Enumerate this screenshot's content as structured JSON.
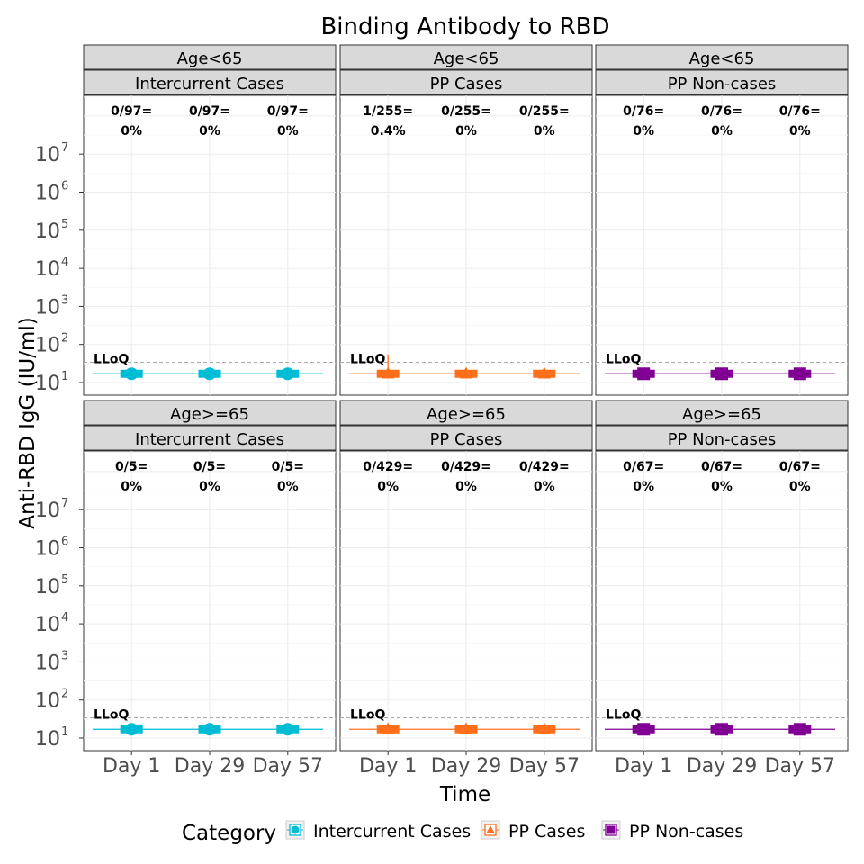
{
  "chart_data": {
    "type": "box",
    "title": "Binding Antibody to RBD",
    "xlabel": "Time",
    "ylabel": "Anti-RBD IgG (IU/ml)",
    "x_categories": [
      "Day 1",
      "Day 29",
      "Day 57"
    ],
    "y_scale": "log10",
    "y_range": [
      5,
      700000000
    ],
    "y_ticks": [
      {
        "value": 10,
        "base": "10",
        "exp": "1"
      },
      {
        "value": 100,
        "base": "10",
        "exp": "2"
      },
      {
        "value": 1000,
        "base": "10",
        "exp": "3"
      },
      {
        "value": 10000,
        "base": "10",
        "exp": "4"
      },
      {
        "value": 100000,
        "base": "10",
        "exp": "5"
      },
      {
        "value": 1000000,
        "base": "10",
        "exp": "6"
      },
      {
        "value": 10000000,
        "base": "10",
        "exp": "7"
      }
    ],
    "lloq": {
      "label": "LLoQ",
      "value": 34
    },
    "legend": {
      "title": "Category",
      "position": "bottom",
      "items": [
        {
          "label": "Intercurrent Cases",
          "color": "#00BCD4",
          "shape": "circle"
        },
        {
          "label": "PP Cases",
          "color": "#FF6F1B",
          "shape": "triangle"
        },
        {
          "label": "PP Non-cases",
          "color": "#810094",
          "shape": "square"
        }
      ]
    },
    "panels": [
      {
        "strip1": "Age<65",
        "strip2": "Intercurrent Cases",
        "category": "Intercurrent Cases",
        "annotations": [
          {
            "frac": "0/97=",
            "pct": "0%"
          },
          {
            "frac": "0/97=",
            "pct": "0%"
          },
          {
            "frac": "0/97=",
            "pct": "0%"
          }
        ],
        "median_values": [
          17,
          17,
          17
        ],
        "extreme_max": null
      },
      {
        "strip1": "Age<65",
        "strip2": "PP Cases",
        "category": "PP Cases",
        "annotations": [
          {
            "frac": "1/255=",
            "pct": "0.4%"
          },
          {
            "frac": "0/255=",
            "pct": "0%"
          },
          {
            "frac": "0/255=",
            "pct": "0%"
          }
        ],
        "median_values": [
          17,
          17,
          17
        ],
        "extreme_max": 55
      },
      {
        "strip1": "Age<65",
        "strip2": "PP Non-cases",
        "category": "PP Non-cases",
        "annotations": [
          {
            "frac": "0/76=",
            "pct": "0%"
          },
          {
            "frac": "0/76=",
            "pct": "0%"
          },
          {
            "frac": "0/76=",
            "pct": "0%"
          }
        ],
        "median_values": [
          17,
          17,
          17
        ],
        "extreme_max": null
      },
      {
        "strip1": "Age>=65",
        "strip2": "Intercurrent Cases",
        "category": "Intercurrent Cases",
        "annotations": [
          {
            "frac": "0/5=",
            "pct": "0%"
          },
          {
            "frac": "0/5=",
            "pct": "0%"
          },
          {
            "frac": "0/5=",
            "pct": "0%"
          }
        ],
        "median_values": [
          17,
          17,
          17
        ],
        "extreme_max": null
      },
      {
        "strip1": "Age>=65",
        "strip2": "PP Cases",
        "category": "PP Cases",
        "annotations": [
          {
            "frac": "0/429=",
            "pct": "0%"
          },
          {
            "frac": "0/429=",
            "pct": "0%"
          },
          {
            "frac": "0/429=",
            "pct": "0%"
          }
        ],
        "median_values": [
          17,
          17,
          17
        ],
        "extreme_max": null
      },
      {
        "strip1": "Age>=65",
        "strip2": "PP Non-cases",
        "category": "PP Non-cases",
        "annotations": [
          {
            "frac": "0/67=",
            "pct": "0%"
          },
          {
            "frac": "0/67=",
            "pct": "0%"
          },
          {
            "frac": "0/67=",
            "pct": "0%"
          }
        ],
        "median_values": [
          17,
          17,
          17
        ],
        "extreme_max": null
      }
    ]
  }
}
